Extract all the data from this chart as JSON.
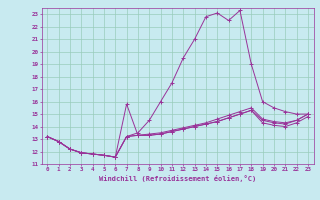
{
  "xlabel": "Windchill (Refroidissement éolien,°C)",
  "bg_color": "#c8eaf0",
  "grid_color": "#99ccbb",
  "line_color": "#993399",
  "xlim": [
    -0.5,
    23.5
  ],
  "ylim": [
    11,
    23.5
  ],
  "xticks": [
    0,
    1,
    2,
    3,
    4,
    5,
    6,
    7,
    8,
    9,
    10,
    11,
    12,
    13,
    14,
    15,
    16,
    17,
    18,
    19,
    20,
    21,
    22,
    23
  ],
  "yticks": [
    11,
    12,
    13,
    14,
    15,
    16,
    17,
    18,
    19,
    20,
    21,
    22,
    23
  ],
  "curves": [
    {
      "x": [
        0,
        1,
        2,
        3,
        4,
        5,
        6,
        7,
        8,
        9,
        10,
        11,
        12,
        13,
        14,
        15,
        16,
        17,
        18,
        19,
        20,
        21,
        22,
        23
      ],
      "y": [
        13.2,
        12.8,
        12.2,
        11.9,
        11.8,
        11.7,
        11.55,
        13.2,
        13.3,
        13.3,
        13.4,
        13.6,
        13.8,
        14.0,
        14.2,
        14.4,
        14.7,
        15.0,
        15.3,
        14.3,
        14.1,
        14.0,
        14.3,
        14.8
      ]
    },
    {
      "x": [
        0,
        1,
        2,
        3,
        4,
        5,
        6,
        7,
        8,
        9,
        10,
        11,
        12,
        13,
        14,
        15,
        16,
        17,
        18,
        19,
        20,
        21,
        22,
        23
      ],
      "y": [
        13.2,
        12.8,
        12.2,
        11.9,
        11.8,
        11.7,
        11.55,
        13.2,
        13.3,
        13.4,
        13.5,
        13.7,
        13.9,
        14.1,
        14.3,
        14.6,
        14.9,
        15.2,
        15.5,
        14.6,
        14.4,
        14.3,
        14.5,
        15.0
      ]
    },
    {
      "x": [
        0,
        1,
        2,
        3,
        4,
        5,
        6,
        7,
        8,
        9,
        10,
        11,
        12,
        13,
        14,
        15,
        16,
        17,
        18,
        19,
        20,
        21,
        22,
        23
      ],
      "y": [
        13.2,
        12.8,
        12.2,
        11.9,
        11.8,
        11.7,
        11.55,
        15.8,
        13.3,
        13.3,
        13.4,
        13.6,
        13.8,
        14.0,
        14.2,
        14.4,
        14.7,
        15.0,
        15.3,
        14.5,
        14.3,
        14.2,
        14.5,
        15.0
      ]
    },
    {
      "x": [
        0,
        1,
        2,
        3,
        4,
        5,
        6,
        7,
        8,
        9,
        10,
        11,
        12,
        13,
        14,
        15,
        16,
        17,
        18,
        19,
        20,
        21,
        22,
        23
      ],
      "y": [
        13.2,
        12.8,
        12.2,
        11.9,
        11.8,
        11.7,
        11.55,
        13.2,
        13.5,
        14.5,
        16.0,
        17.5,
        19.5,
        21.0,
        22.8,
        23.1,
        22.5,
        23.3,
        19.0,
        16.0,
        15.5,
        15.2,
        15.0,
        15.0
      ]
    }
  ]
}
